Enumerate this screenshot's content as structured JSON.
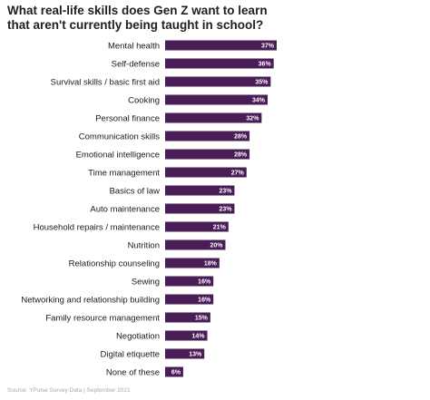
{
  "chart_data": {
    "type": "bar",
    "orientation": "horizontal",
    "title_lines": [
      "What real-life skills does Gen Z want to learn",
      "that aren't currently being taught in school?"
    ],
    "categories": [
      "Mental health",
      "Self-defense",
      "Survival skills / basic first aid",
      "Cooking",
      "Personal finance",
      "Communication skills",
      "Emotional intelligence",
      "Time management",
      "Basics of law",
      "Auto maintenance",
      "Household repairs / maintenance",
      "Nutrition",
      "Relationship counseling",
      "Sewing",
      "Networking and relationship building",
      "Family resource management",
      "Negotiation",
      "Digital etiquette",
      "None of these"
    ],
    "values": [
      37,
      36,
      35,
      34,
      32,
      28,
      28,
      27,
      23,
      23,
      21,
      20,
      18,
      16,
      16,
      15,
      14,
      13,
      6
    ],
    "value_labels": [
      "37%",
      "36%",
      "35%",
      "34%",
      "32%",
      "28%",
      "28%",
      "27%",
      "23%",
      "23%",
      "21%",
      "20%",
      "18%",
      "16%",
      "16%",
      "15%",
      "14%",
      "13%",
      "6%"
    ],
    "xlim": [
      0,
      37
    ],
    "grid": false,
    "bar_color": "#4a1d57",
    "label_color": "#ffffff"
  },
  "source": "Source: YPulse Survey Data | September 2021"
}
